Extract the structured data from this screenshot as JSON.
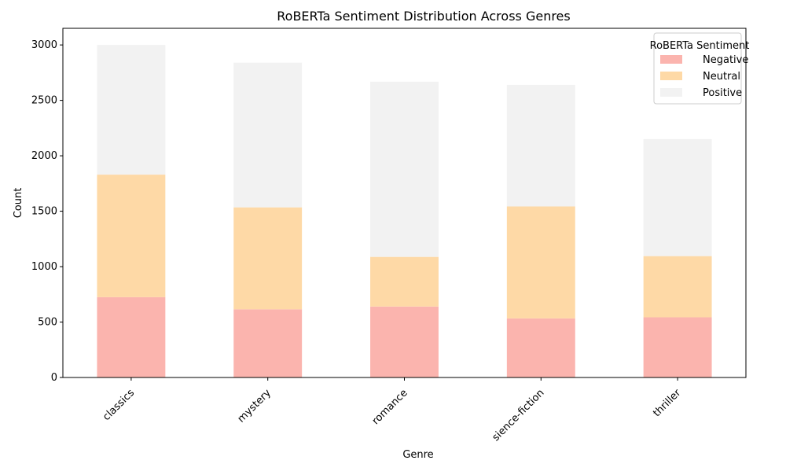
{
  "chart_data": {
    "type": "bar",
    "stacked": true,
    "title": "RoBERTa Sentiment Distribution Across Genres",
    "xlabel": "Genre",
    "ylabel": "Count",
    "ylim": [
      0,
      3150
    ],
    "yticks": [
      0,
      500,
      1000,
      1500,
      2000,
      2500,
      3000
    ],
    "categories": [
      "classics",
      "mystery",
      "romance",
      "sience-fiction",
      "thriller"
    ],
    "legend": {
      "title": "RoBERTa Sentiment",
      "placement": "top-right"
    },
    "grid": false,
    "series": [
      {
        "name": "Negative",
        "color": "#fbb4ae",
        "values": [
          725,
          615,
          640,
          533,
          543
        ]
      },
      {
        "name": "Neutral",
        "color": "#fed9a6",
        "values": [
          1105,
          920,
          448,
          1010,
          552
        ]
      },
      {
        "name": "Positive",
        "color": "#f2f2f2",
        "values": [
          1170,
          1305,
          1580,
          1097,
          1055
        ]
      }
    ]
  }
}
